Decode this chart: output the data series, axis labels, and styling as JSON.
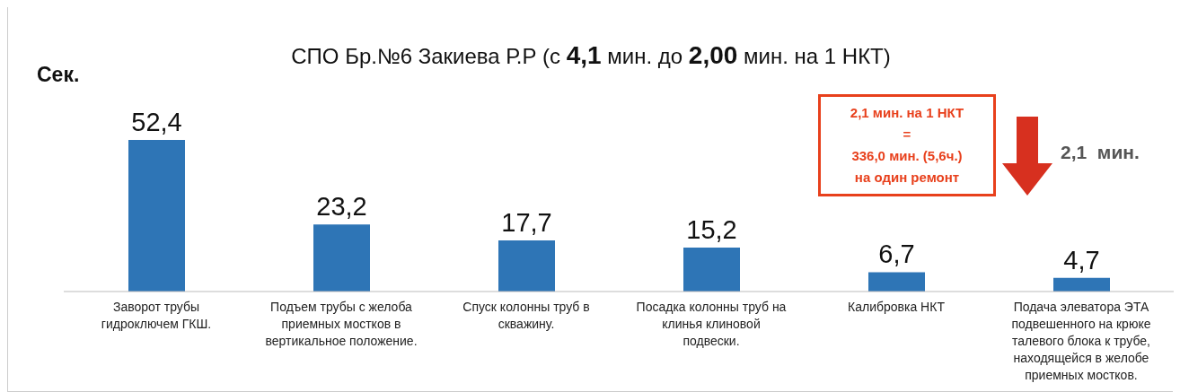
{
  "chart_data": {
    "type": "bar",
    "title": "СПО Бр.№6 Закиева Р.Р (с 4,1 мин. до 2,00 мин. на 1 НКТ)",
    "ylabel": "Сек.",
    "categories": [
      "Заворот трубы гидроключем ГКШ.",
      "Подъем трубы с желоба приемных мостков в вертикальное положение.",
      "Спуск колонны труб в скважину.",
      "Посадка колонны труб на клинья клиновой подвески.",
      "Калибровка НКТ",
      "Подача элеватора ЭТА подвешенного на крюке талевого блока к трубе, находящейся в желобе приемных мостков."
    ],
    "values": [
      52.4,
      23.2,
      17.7,
      15.2,
      6.7,
      4.7
    ],
    "color": "#2e75b6",
    "value_labels": [
      "52,4",
      "23,2",
      "17,7",
      "15,2",
      "6,7",
      "4,7"
    ],
    "grid": false,
    "legend": false,
    "annotations": [
      "2,1 мин. на 1 НКТ\n=\n336,0 мин. (5,6ч.)\nна один ремонт",
      "2,1  мин."
    ]
  }
}
